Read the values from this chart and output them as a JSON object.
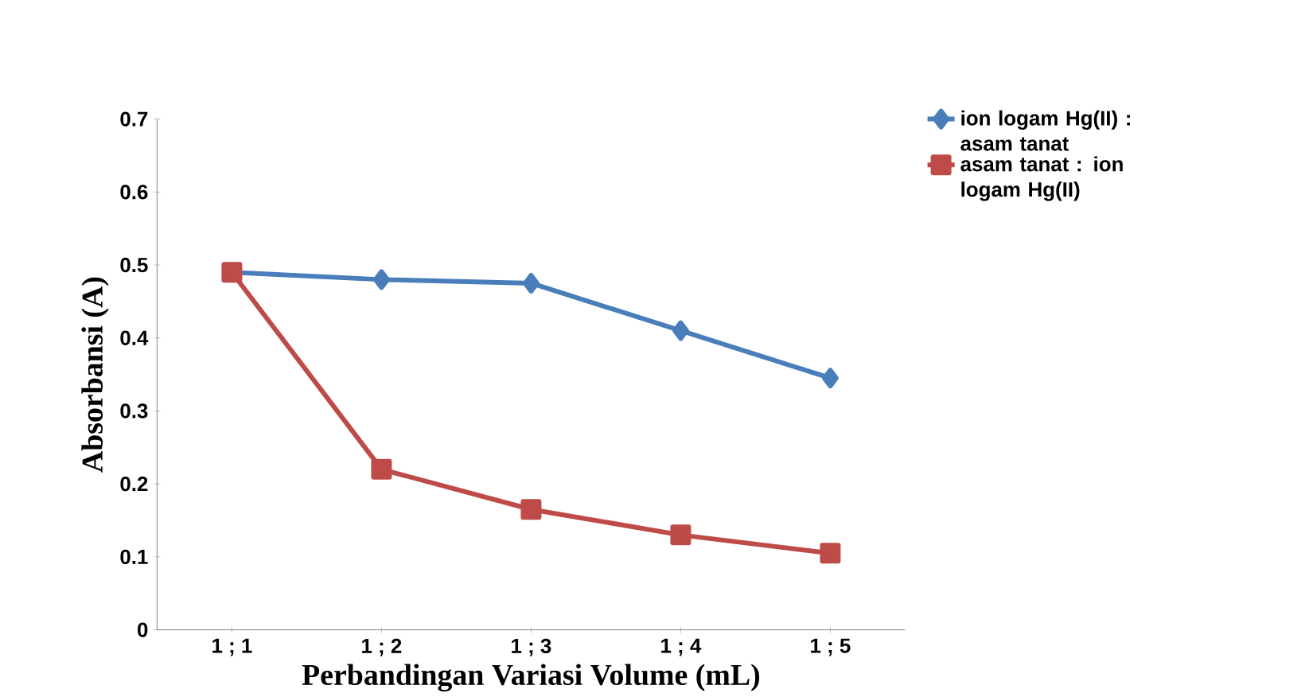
{
  "chart_data": {
    "type": "line",
    "xlabel": "Perbandingan Variasi Volume (mL)",
    "ylabel": "Absorbansi (A)",
    "categories": [
      "1 ; 1",
      "1 ; 2",
      "1 ; 3",
      "1 ; 4",
      "1 ; 5"
    ],
    "series": [
      {
        "name": "ion logam Hg(II) : asam tanat",
        "color": "#4a7ebb",
        "marker": "diamond",
        "values": [
          0.49,
          0.48,
          0.475,
          0.41,
          0.345
        ]
      },
      {
        "name": "asam tanat : ion logam Hg(II)",
        "color": "#be4b48",
        "marker": "square",
        "values": [
          0.49,
          0.22,
          0.165,
          0.13,
          0.105
        ]
      }
    ],
    "ylim": [
      0,
      0.7
    ],
    "yticks": [
      0,
      0.1,
      0.2,
      0.3,
      0.4,
      0.5,
      0.6,
      0.7
    ],
    "grid": false,
    "legend": "top right",
    "line_style": "solid"
  }
}
